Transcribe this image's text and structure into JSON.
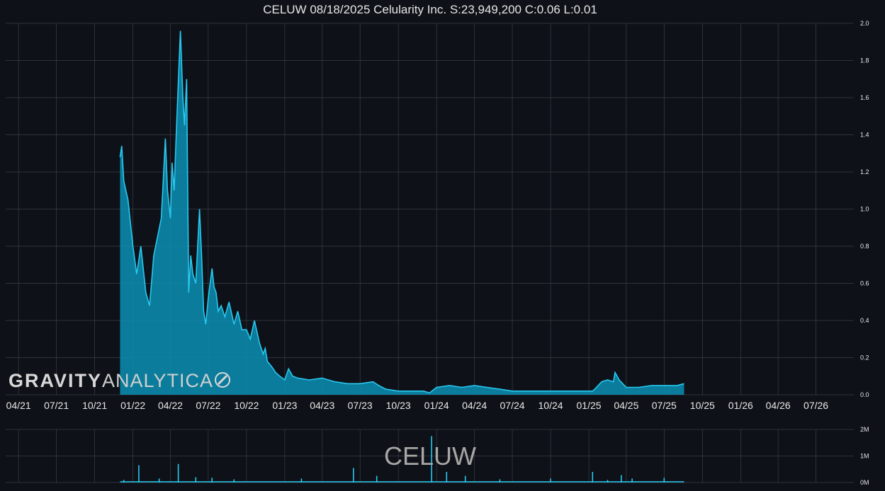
{
  "watermark": {
    "part1": "GRAVITY",
    "part2": "ANALYTICA",
    "logo_icon": "rocket-orbit-icon"
  },
  "volume_watermark": "CELUW",
  "colors": {
    "background": "#0e1117",
    "line": "#28c8f0",
    "fill": "#0b8fb3",
    "grid": "#3a3f47",
    "text": "#e6e6e6"
  },
  "chart_data": [
    {
      "type": "area",
      "title": "CELUW 08/18/2025 Celularity Inc. S:23,949,200 C:0.06 L:0.01",
      "xlabel": "",
      "ylabel": "",
      "x_ticks": [
        "04/21",
        "07/21",
        "10/21",
        "01/22",
        "04/22",
        "07/22",
        "10/22",
        "01/23",
        "04/23",
        "07/23",
        "10/23",
        "01/24",
        "04/24",
        "07/24",
        "10/24",
        "01/25",
        "04/25",
        "07/25",
        "10/25",
        "01/26",
        "04/26",
        "07/26"
      ],
      "x_range": [
        "2021-03-01",
        "2026-09-30"
      ],
      "ylim": [
        0,
        2.0
      ],
      "y_ticks": [
        "0.0",
        "0.2",
        "0.4",
        "0.6",
        "0.8",
        "1.0",
        "1.2",
        "1.4",
        "1.6",
        "1.8",
        "2.0"
      ],
      "grid": true,
      "x": [
        "2021-12-01",
        "2021-12-05",
        "2021-12-10",
        "2021-12-20",
        "2022-01-01",
        "2022-01-10",
        "2022-01-20",
        "2022-02-01",
        "2022-02-10",
        "2022-02-20",
        "2022-03-01",
        "2022-03-10",
        "2022-03-20",
        "2022-03-25",
        "2022-04-01",
        "2022-04-05",
        "2022-04-10",
        "2022-04-15",
        "2022-04-20",
        "2022-04-25",
        "2022-05-01",
        "2022-05-05",
        "2022-05-10",
        "2022-05-15",
        "2022-05-20",
        "2022-05-25",
        "2022-06-01",
        "2022-06-10",
        "2022-06-15",
        "2022-06-20",
        "2022-06-25",
        "2022-07-01",
        "2022-07-10",
        "2022-07-15",
        "2022-07-20",
        "2022-07-25",
        "2022-08-01",
        "2022-08-10",
        "2022-08-20",
        "2022-09-01",
        "2022-09-10",
        "2022-09-20",
        "2022-10-01",
        "2022-10-10",
        "2022-10-20",
        "2022-11-01",
        "2022-11-10",
        "2022-11-15",
        "2022-11-20",
        "2022-12-01",
        "2022-12-10",
        "2022-12-20",
        "2023-01-01",
        "2023-01-10",
        "2023-01-20",
        "2023-02-01",
        "2023-03-01",
        "2023-04-01",
        "2023-05-01",
        "2023-06-01",
        "2023-07-01",
        "2023-08-01",
        "2023-08-15",
        "2023-09-01",
        "2023-10-01",
        "2023-11-01",
        "2023-12-01",
        "2023-12-15",
        "2024-01-01",
        "2024-02-01",
        "2024-03-01",
        "2024-04-01",
        "2024-05-01",
        "2024-06-01",
        "2024-07-01",
        "2024-08-01",
        "2024-09-01",
        "2024-10-01",
        "2024-11-01",
        "2024-12-01",
        "2025-01-01",
        "2025-01-10",
        "2025-01-15",
        "2025-02-01",
        "2025-02-15",
        "2025-03-01",
        "2025-03-05",
        "2025-03-15",
        "2025-04-01",
        "2025-05-01",
        "2025-06-01",
        "2025-07-01",
        "2025-08-01",
        "2025-08-18"
      ],
      "series": [
        {
          "values": [
            1.28,
            1.34,
            1.15,
            1.05,
            0.8,
            0.65,
            0.8,
            0.55,
            0.48,
            0.75,
            0.85,
            0.95,
            1.38,
            1.1,
            0.95,
            1.25,
            1.1,
            1.4,
            1.68,
            1.96,
            1.6,
            1.45,
            1.7,
            0.55,
            0.75,
            0.65,
            0.6,
            1.0,
            0.75,
            0.45,
            0.38,
            0.52,
            0.68,
            0.58,
            0.55,
            0.45,
            0.48,
            0.42,
            0.5,
            0.38,
            0.45,
            0.35,
            0.35,
            0.3,
            0.4,
            0.28,
            0.22,
            0.25,
            0.18,
            0.15,
            0.12,
            0.1,
            0.08,
            0.14,
            0.1,
            0.09,
            0.08,
            0.09,
            0.07,
            0.06,
            0.06,
            0.07,
            0.05,
            0.03,
            0.02,
            0.02,
            0.02,
            0.01,
            0.04,
            0.05,
            0.04,
            0.05,
            0.04,
            0.03,
            0.02,
            0.02,
            0.02,
            0.02,
            0.02,
            0.02,
            0.02,
            0.02,
            0.03,
            0.07,
            0.08,
            0.07,
            0.12,
            0.08,
            0.04,
            0.04,
            0.05,
            0.05,
            0.05,
            0.06
          ]
        }
      ]
    },
    {
      "type": "bar",
      "title": "",
      "xlabel": "",
      "ylabel": "",
      "ylim": [
        0,
        2000000
      ],
      "y_ticks": [
        "0M",
        "1M",
        "2M"
      ],
      "grid": true,
      "x": [
        "2021-12-10",
        "2022-01-15",
        "2022-03-05",
        "2022-04-20",
        "2022-06-01",
        "2022-07-10",
        "2022-09-01",
        "2023-02-10",
        "2023-06-15",
        "2023-08-10",
        "2023-12-20",
        "2024-01-25",
        "2024-03-10",
        "2024-06-01",
        "2024-10-01",
        "2025-01-10",
        "2025-02-15",
        "2025-03-20",
        "2025-04-15",
        "2025-07-01"
      ],
      "series": [
        {
          "values": [
            100000,
            650000,
            150000,
            700000,
            200000,
            180000,
            120000,
            150000,
            550000,
            250000,
            1750000,
            400000,
            250000,
            120000,
            150000,
            400000,
            100000,
            280000,
            150000,
            180000
          ]
        }
      ]
    }
  ]
}
